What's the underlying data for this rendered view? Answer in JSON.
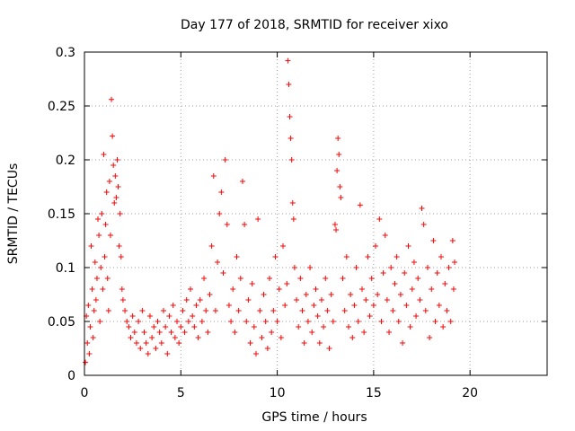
{
  "chart_data": {
    "type": "scatter",
    "title": "Day 177 of 2018, SRMTID for receiver xixo",
    "xlabel": "GPS time / hours",
    "ylabel": "SRMTID / TECUs",
    "xlim": [
      0,
      24
    ],
    "ylim": [
      0,
      0.3
    ],
    "x_ticks": [
      "0",
      "5",
      "10",
      "15",
      "20"
    ],
    "y_ticks": [
      "0",
      "0.05",
      "0.1",
      "0.15",
      "0.2",
      "0.25",
      "0.3"
    ],
    "grid": true,
    "marker": "plus",
    "color": "#ff0000",
    "series": [
      {
        "name": "SRMTID",
        "points": [
          [
            0.05,
            0.012
          ],
          [
            0.1,
            0.055
          ],
          [
            0.15,
            0.03
          ],
          [
            0.2,
            0.065
          ],
          [
            0.25,
            0.02
          ],
          [
            0.3,
            0.045
          ],
          [
            0.35,
            0.12
          ],
          [
            0.4,
            0.08
          ],
          [
            0.45,
            0.035
          ],
          [
            0.5,
            0.06
          ],
          [
            0.55,
            0.105
          ],
          [
            0.6,
            0.07
          ],
          [
            0.65,
            0.09
          ],
          [
            0.7,
            0.145
          ],
          [
            0.75,
            0.13
          ],
          [
            0.8,
            0.05
          ],
          [
            0.85,
            0.1
          ],
          [
            0.9,
            0.15
          ],
          [
            0.95,
            0.08
          ],
          [
            1.0,
            0.205
          ],
          [
            1.05,
            0.11
          ],
          [
            1.1,
            0.14
          ],
          [
            1.15,
            0.17
          ],
          [
            1.2,
            0.09
          ],
          [
            1.25,
            0.06
          ],
          [
            1.3,
            0.18
          ],
          [
            1.35,
            0.13
          ],
          [
            1.4,
            0.256
          ],
          [
            1.45,
            0.222
          ],
          [
            1.5,
            0.195
          ],
          [
            1.55,
            0.16
          ],
          [
            1.6,
            0.185
          ],
          [
            1.65,
            0.165
          ],
          [
            1.7,
            0.2
          ],
          [
            1.75,
            0.175
          ],
          [
            1.8,
            0.12
          ],
          [
            1.85,
            0.15
          ],
          [
            1.9,
            0.11
          ],
          [
            1.95,
            0.08
          ],
          [
            2.0,
            0.07
          ],
          [
            2.1,
            0.06
          ],
          [
            2.2,
            0.05
          ],
          [
            2.3,
            0.045
          ],
          [
            2.4,
            0.035
          ],
          [
            2.5,
            0.055
          ],
          [
            2.6,
            0.04
          ],
          [
            2.7,
            0.03
          ],
          [
            2.8,
            0.05
          ],
          [
            2.9,
            0.025
          ],
          [
            3.0,
            0.06
          ],
          [
            3.1,
            0.04
          ],
          [
            3.2,
            0.03
          ],
          [
            3.3,
            0.02
          ],
          [
            3.4,
            0.055
          ],
          [
            3.5,
            0.035
          ],
          [
            3.6,
            0.045
          ],
          [
            3.7,
            0.025
          ],
          [
            3.8,
            0.05
          ],
          [
            3.9,
            0.04
          ],
          [
            4.0,
            0.03
          ],
          [
            4.1,
            0.06
          ],
          [
            4.2,
            0.045
          ],
          [
            4.3,
            0.02
          ],
          [
            4.4,
            0.055
          ],
          [
            4.5,
            0.04
          ],
          [
            4.6,
            0.065
          ],
          [
            4.7,
            0.035
          ],
          [
            4.8,
            0.05
          ],
          [
            4.9,
            0.03
          ],
          [
            5.0,
            0.045
          ],
          [
            5.1,
            0.06
          ],
          [
            5.2,
            0.04
          ],
          [
            5.3,
            0.07
          ],
          [
            5.4,
            0.05
          ],
          [
            5.5,
            0.08
          ],
          [
            5.6,
            0.055
          ],
          [
            5.7,
            0.045
          ],
          [
            5.8,
            0.065
          ],
          [
            5.9,
            0.035
          ],
          [
            6.0,
            0.07
          ],
          [
            6.1,
            0.05
          ],
          [
            6.2,
            0.09
          ],
          [
            6.3,
            0.06
          ],
          [
            6.4,
            0.04
          ],
          [
            6.5,
            0.075
          ],
          [
            6.6,
            0.12
          ],
          [
            6.7,
            0.185
          ],
          [
            6.8,
            0.06
          ],
          [
            6.9,
            0.105
          ],
          [
            7.0,
            0.15
          ],
          [
            7.1,
            0.17
          ],
          [
            7.2,
            0.095
          ],
          [
            7.3,
            0.2
          ],
          [
            7.4,
            0.14
          ],
          [
            7.5,
            0.065
          ],
          [
            7.6,
            0.05
          ],
          [
            7.7,
            0.08
          ],
          [
            7.8,
            0.04
          ],
          [
            7.9,
            0.11
          ],
          [
            8.0,
            0.06
          ],
          [
            8.1,
            0.09
          ],
          [
            8.2,
            0.18
          ],
          [
            8.3,
            0.14
          ],
          [
            8.4,
            0.05
          ],
          [
            8.5,
            0.07
          ],
          [
            8.6,
            0.03
          ],
          [
            8.7,
            0.085
          ],
          [
            8.8,
            0.045
          ],
          [
            8.9,
            0.02
          ],
          [
            9.0,
            0.145
          ],
          [
            9.1,
            0.06
          ],
          [
            9.2,
            0.035
          ],
          [
            9.3,
            0.075
          ],
          [
            9.4,
            0.05
          ],
          [
            9.5,
            0.025
          ],
          [
            9.6,
            0.09
          ],
          [
            9.7,
            0.04
          ],
          [
            9.8,
            0.06
          ],
          [
            9.9,
            0.11
          ],
          [
            10.0,
            0.05
          ],
          [
            10.1,
            0.08
          ],
          [
            10.2,
            0.035
          ],
          [
            10.3,
            0.12
          ],
          [
            10.4,
            0.065
          ],
          [
            10.5,
            0.085
          ],
          [
            10.55,
            0.292
          ],
          [
            10.6,
            0.27
          ],
          [
            10.65,
            0.24
          ],
          [
            10.7,
            0.22
          ],
          [
            10.75,
            0.2
          ],
          [
            10.8,
            0.16
          ],
          [
            10.85,
            0.145
          ],
          [
            10.9,
            0.1
          ],
          [
            11.0,
            0.07
          ],
          [
            11.1,
            0.045
          ],
          [
            11.2,
            0.09
          ],
          [
            11.3,
            0.06
          ],
          [
            11.4,
            0.03
          ],
          [
            11.5,
            0.075
          ],
          [
            11.6,
            0.05
          ],
          [
            11.7,
            0.1
          ],
          [
            11.8,
            0.04
          ],
          [
            11.9,
            0.065
          ],
          [
            12.0,
            0.08
          ],
          [
            12.1,
            0.055
          ],
          [
            12.2,
            0.03
          ],
          [
            12.3,
            0.07
          ],
          [
            12.4,
            0.045
          ],
          [
            12.5,
            0.09
          ],
          [
            12.6,
            0.06
          ],
          [
            12.7,
            0.025
          ],
          [
            12.8,
            0.075
          ],
          [
            12.9,
            0.05
          ],
          [
            13.0,
            0.14
          ],
          [
            13.05,
            0.135
          ],
          [
            13.1,
            0.19
          ],
          [
            13.15,
            0.22
          ],
          [
            13.2,
            0.205
          ],
          [
            13.25,
            0.175
          ],
          [
            13.3,
            0.165
          ],
          [
            13.4,
            0.09
          ],
          [
            13.5,
            0.06
          ],
          [
            13.6,
            0.11
          ],
          [
            13.7,
            0.045
          ],
          [
            13.8,
            0.075
          ],
          [
            13.9,
            0.035
          ],
          [
            14.0,
            0.065
          ],
          [
            14.1,
            0.1
          ],
          [
            14.2,
            0.05
          ],
          [
            14.3,
            0.158
          ],
          [
            14.4,
            0.08
          ],
          [
            14.5,
            0.04
          ],
          [
            14.6,
            0.07
          ],
          [
            14.7,
            0.11
          ],
          [
            14.8,
            0.055
          ],
          [
            14.9,
            0.09
          ],
          [
            15.0,
            0.065
          ],
          [
            15.1,
            0.12
          ],
          [
            15.2,
            0.075
          ],
          [
            15.3,
            0.145
          ],
          [
            15.4,
            0.05
          ],
          [
            15.5,
            0.095
          ],
          [
            15.6,
            0.13
          ],
          [
            15.7,
            0.07
          ],
          [
            15.8,
            0.04
          ],
          [
            15.9,
            0.1
          ],
          [
            16.0,
            0.06
          ],
          [
            16.1,
            0.085
          ],
          [
            16.2,
            0.11
          ],
          [
            16.3,
            0.05
          ],
          [
            16.4,
            0.075
          ],
          [
            16.5,
            0.03
          ],
          [
            16.6,
            0.095
          ],
          [
            16.7,
            0.065
          ],
          [
            16.8,
            0.12
          ],
          [
            16.9,
            0.045
          ],
          [
            17.0,
            0.08
          ],
          [
            17.1,
            0.105
          ],
          [
            17.2,
            0.055
          ],
          [
            17.3,
            0.09
          ],
          [
            17.4,
            0.07
          ],
          [
            17.5,
            0.155
          ],
          [
            17.6,
            0.14
          ],
          [
            17.7,
            0.06
          ],
          [
            17.8,
            0.1
          ],
          [
            17.9,
            0.035
          ],
          [
            18.0,
            0.08
          ],
          [
            18.1,
            0.125
          ],
          [
            18.2,
            0.05
          ],
          [
            18.3,
            0.095
          ],
          [
            18.4,
            0.065
          ],
          [
            18.5,
            0.11
          ],
          [
            18.6,
            0.045
          ],
          [
            18.7,
            0.085
          ],
          [
            18.8,
            0.06
          ],
          [
            18.9,
            0.1
          ],
          [
            19.0,
            0.05
          ],
          [
            19.1,
            0.125
          ],
          [
            19.15,
            0.08
          ],
          [
            19.2,
            0.105
          ]
        ]
      }
    ]
  }
}
